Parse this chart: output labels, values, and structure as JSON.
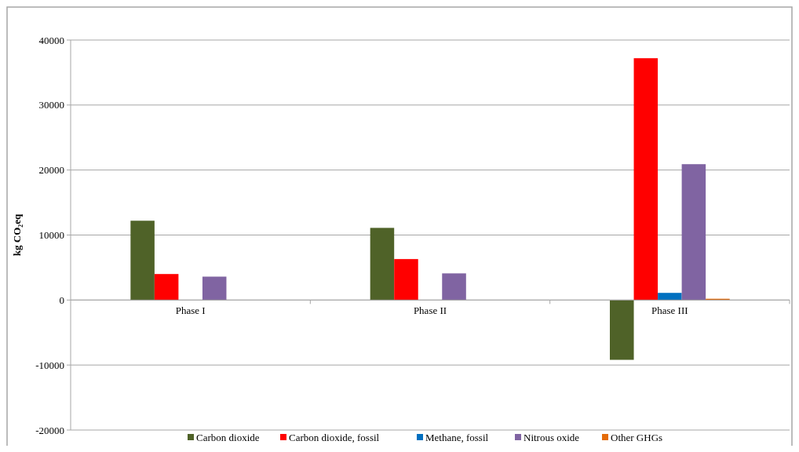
{
  "chart_data": {
    "type": "bar",
    "ylabel": "kg CO₂eq",
    "categories": [
      "Phase I",
      "Phase II",
      "Phase III"
    ],
    "series": [
      {
        "name": "Carbon dioxide",
        "color": "#4f6228",
        "values": [
          12200,
          11100,
          -9200
        ]
      },
      {
        "name": "Carbon dioxide, fossil",
        "color": "#ff0000",
        "values": [
          4000,
          6300,
          37200
        ]
      },
      {
        "name": "Methane, fossil",
        "color": "#0070c0",
        "values": [
          null,
          null,
          1100
        ]
      },
      {
        "name": "Nitrous oxide",
        "color": "#8064a2",
        "values": [
          3600,
          4100,
          20900
        ]
      },
      {
        "name": "Other GHGs",
        "color": "#e46c0a",
        "values": [
          0,
          0,
          200
        ]
      }
    ],
    "ylim": [
      -20000,
      40000
    ],
    "yticks": [
      -20000,
      -10000,
      0,
      10000,
      20000,
      30000,
      40000
    ],
    "grid": "y",
    "legend": "bottom"
  }
}
